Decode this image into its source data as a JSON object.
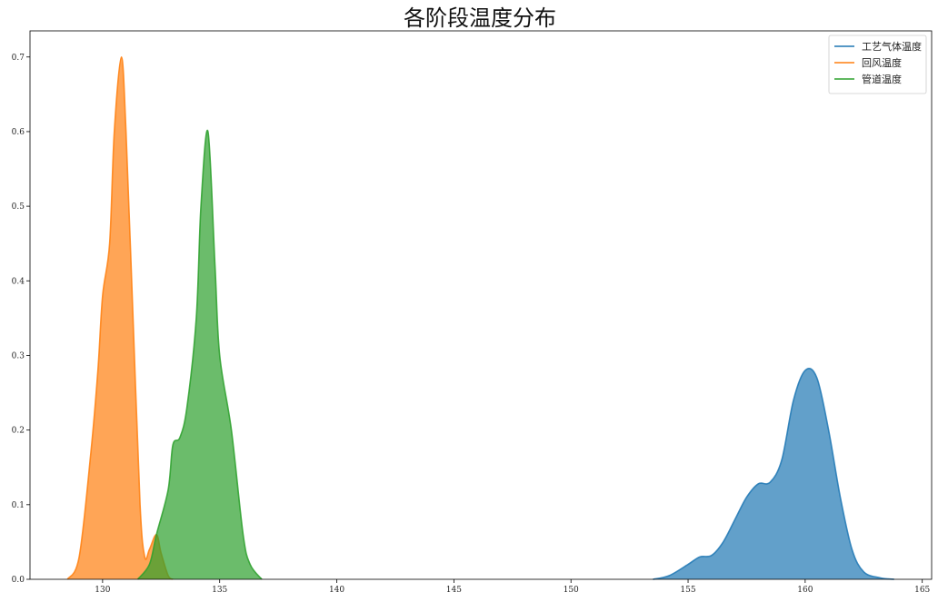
{
  "chart_data": {
    "type": "area",
    "title": "各阶段温度分布",
    "xlabel": "",
    "ylabel": "",
    "xlim": [
      126.9,
      165.4
    ],
    "ylim": [
      0,
      0.735
    ],
    "xticks": [
      130,
      135,
      140,
      145,
      150,
      155,
      160,
      165
    ],
    "yticks": [
      0.0,
      0.1,
      0.2,
      0.3,
      0.4,
      0.5,
      0.6,
      0.7
    ],
    "grid": false,
    "legend_position": "top-right",
    "series": [
      {
        "name": "工艺气体温度",
        "color": "#1f77b4",
        "x": [
          153.5,
          154.2,
          155.0,
          155.5,
          156.0,
          156.5,
          157.0,
          157.5,
          158.0,
          158.5,
          159.0,
          159.5,
          160.0,
          160.5,
          161.0,
          161.5,
          162.0,
          162.5,
          163.2,
          163.8
        ],
        "y": [
          0.0,
          0.005,
          0.02,
          0.03,
          0.032,
          0.05,
          0.08,
          0.11,
          0.128,
          0.13,
          0.16,
          0.24,
          0.28,
          0.27,
          0.2,
          0.11,
          0.04,
          0.01,
          0.002,
          0.0
        ]
      },
      {
        "name": "回风温度",
        "color": "#ff7f0e",
        "x": [
          128.5,
          129.0,
          129.5,
          129.8,
          130.0,
          130.3,
          130.5,
          130.8,
          131.0,
          131.3,
          131.6,
          131.8,
          132.0,
          132.3,
          132.5,
          132.8,
          133.0
        ],
        "y": [
          0.0,
          0.03,
          0.17,
          0.28,
          0.38,
          0.45,
          0.6,
          0.7,
          0.6,
          0.35,
          0.1,
          0.03,
          0.04,
          0.06,
          0.035,
          0.005,
          0.0
        ]
      },
      {
        "name": "管道温度",
        "color": "#2ca02c",
        "x": [
          131.5,
          132.0,
          132.3,
          132.8,
          133.0,
          133.3,
          133.6,
          134.0,
          134.2,
          134.5,
          134.8,
          135.0,
          135.5,
          136.0,
          136.3,
          136.8
        ],
        "y": [
          0.0,
          0.02,
          0.06,
          0.12,
          0.18,
          0.19,
          0.23,
          0.35,
          0.5,
          0.6,
          0.42,
          0.3,
          0.2,
          0.06,
          0.02,
          0.0
        ]
      }
    ]
  }
}
